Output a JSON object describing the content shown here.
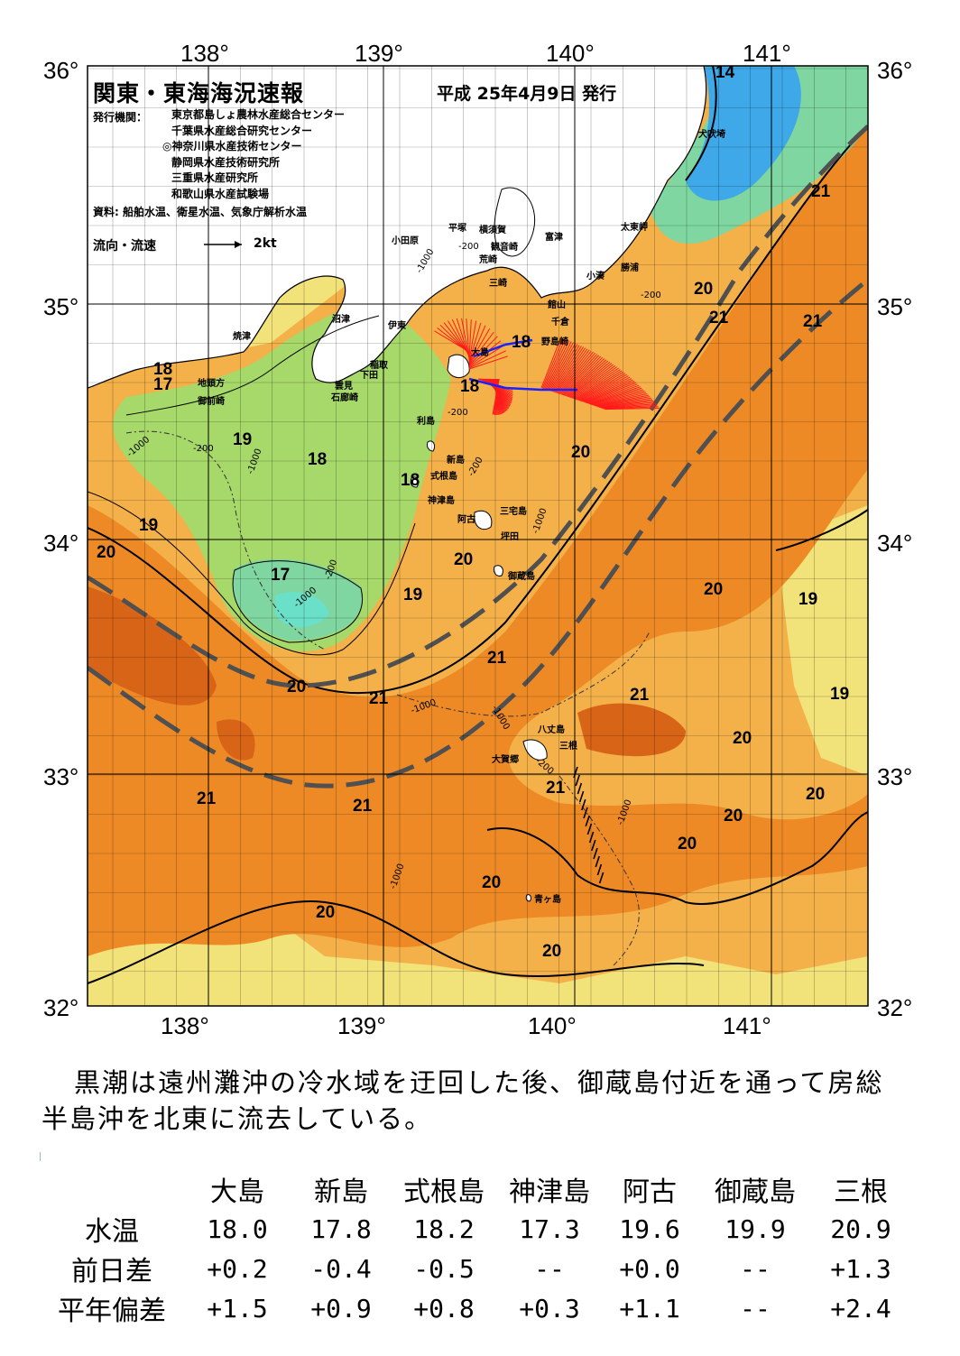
{
  "header": {
    "title": "関東・東海海況速報",
    "date": "平成 25年4月9日 発行",
    "publisher_label": "発行機関：",
    "publishers": [
      "東京都島しょ農林水産総合センター",
      "千葉県水産総合研究センター",
      "◎神奈川県水産技術センター",
      "静岡県水産技術研究所",
      "三重県水産研究所",
      "和歌山県水産試験場"
    ],
    "source": "資料: 船舶水温、衛星水温、気象庁解析水温",
    "flow_label": "流向・流速",
    "flow_scale": "2kt"
  },
  "axes": {
    "lon_labels": [
      "138°",
      "139°",
      "140°",
      "141°"
    ],
    "lat_labels": [
      "36°",
      "35°",
      "34°",
      "33°",
      "32°"
    ]
  },
  "colors": {
    "water_17": "#7fd6a0",
    "water_16": "#6be0c8",
    "water_cold": "#3fa8e8",
    "water_18": "#a6d86a",
    "water_19": "#f2e27a",
    "water_20": "#f4b14a",
    "water_21": "#ee8a26",
    "water_22": "#d86418",
    "land": "#ffffff",
    "current_axis": "#505050",
    "vector_red": "#ff1a1a",
    "vector_blue": "#1a22ff"
  },
  "place_names": [
    "小田原",
    "平塚",
    "横須賀",
    "観音崎",
    "荒崎",
    "三崎",
    "富津",
    "館山",
    "千倉",
    "野島崎",
    "太東岬",
    "勝浦",
    "小湊",
    "犬吠埼",
    "沼津",
    "伊東",
    "稲取",
    "下田",
    "雲見",
    "石廊崎",
    "焼津",
    "地頭方",
    "御前崎",
    "大島",
    "利島",
    "新島",
    "式根島",
    "神津島",
    "阿古",
    "三宅島",
    "坪田",
    "御蔵島",
    "八丈島",
    "三根",
    "大賀郷",
    "青ヶ島"
  ],
  "isotherm_labels": [
    "14",
    "21",
    "20",
    "21",
    "21",
    "18",
    "18",
    "18",
    "17",
    "19",
    "18",
    "18",
    "20",
    "19",
    "20",
    "17",
    "19",
    "20",
    "21",
    "19",
    "20",
    "21",
    "21",
    "19",
    "20",
    "21",
    "20",
    "21",
    "20",
    "21",
    "20",
    "20",
    "20",
    "20",
    "20"
  ],
  "depth_labels": [
    "-200",
    "-1000",
    "-200",
    "-200",
    "-1000",
    "-200",
    "-200",
    "-1000",
    "-200",
    "-1000",
    "-1000",
    "-1000",
    "-1000",
    "-200",
    "-1000",
    "-1000"
  ],
  "summary": "黒潮は遠州灘沖の冷水域を迂回した後、御蔵島付近を通って房総半島沖を北東に流去している。",
  "table": {
    "columns": [
      "大島",
      "新島",
      "式根島",
      "神津島",
      "阿古",
      "御蔵島",
      "三根"
    ],
    "rows": [
      {
        "label": "水温",
        "values": [
          "18.0",
          "17.8",
          "18.2",
          "17.3",
          "19.6",
          "19.9",
          "20.9"
        ]
      },
      {
        "label": "前日差",
        "values": [
          "+0.2",
          "-0.4",
          "-0.5",
          "--",
          "+0.0",
          "--",
          "+1.3"
        ]
      },
      {
        "label": "平年偏差",
        "values": [
          "+1.5",
          "+0.9",
          "+0.8",
          "+0.3",
          "+1.1",
          "--",
          "+2.4"
        ]
      }
    ]
  }
}
